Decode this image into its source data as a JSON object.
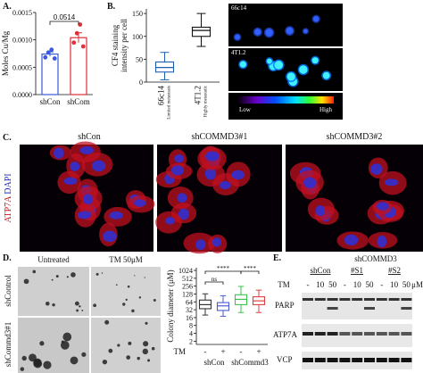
{
  "figure": {
    "panel_labels": [
      "A.",
      "B.",
      "C.",
      "D.",
      "E."
    ],
    "b_images": {
      "top": "66c14",
      "bottom": "4T1.2",
      "low": "Low",
      "high": "High"
    },
    "c": {
      "columns": [
        "shCon",
        "shCOMMD3#1",
        "shCOMMD3#2"
      ],
      "y_label_parts": [
        "ATP7A",
        "DAPI"
      ]
    },
    "d_images": {
      "columns": [
        "Untreated",
        "TM 50μM"
      ],
      "rows": [
        "shControl",
        "shCommd3#1"
      ]
    },
    "e": {
      "group": "shCOMMD3",
      "lanes_groups": [
        "shCon",
        "#S1",
        "#S2"
      ],
      "treatment": "TM",
      "doses": [
        "-",
        "10",
        "50",
        "-",
        "10",
        "50",
        "-",
        "10",
        "50"
      ],
      "unit": "μM",
      "proteins": [
        "PARP",
        "ATP7A",
        "VCP"
      ]
    }
  },
  "chart_data": [
    {
      "type": "bar",
      "y_label": "Moles Cu/Mg",
      "categories": [
        "shCon",
        "shCom"
      ],
      "values": [
        0.00074,
        0.00104
      ],
      "errors": [
        4e-05,
        9e-05
      ],
      "points": [
        [
          0.00068,
          0.00077,
          0.00082,
          0.00066
        ],
        [
          0.00095,
          0.00112,
          0.00128,
          0.00088
        ]
      ],
      "colors": [
        "#3a5bd9",
        "#e0303a"
      ],
      "ylim": [
        0,
        0.0015
      ],
      "yticks": [
        {
          "value": 0,
          "label": "0.0000"
        },
        {
          "value": 0.0005,
          "label": "0.0005"
        },
        {
          "value": 0.001,
          "label": "0.0010"
        },
        {
          "value": 0.0015,
          "label": "0.0015"
        }
      ],
      "annotation": "0.0514"
    },
    {
      "type": "box",
      "y_label": [
        "CF4 staining",
        "intensity per cell"
      ],
      "categories": [
        "66c14",
        "4T1.2"
      ],
      "category_notes": [
        "Limited metastasis",
        "Highly metastatic"
      ],
      "boxes": [
        {
          "min": 5,
          "q1": 22,
          "median": 32,
          "q3": 44,
          "max": 65
        },
        {
          "min": 78,
          "q1": 100,
          "median": 113,
          "q3": 120,
          "max": 150
        }
      ],
      "colors": [
        "#1f5fb0",
        "#111111"
      ],
      "ylim": [
        0,
        160
      ],
      "yticks": [
        0,
        50,
        100,
        150
      ]
    },
    {
      "type": "box",
      "y_label": "Colony diameter (μM)",
      "log_scale": true,
      "ylim": [
        1.5,
        1300
      ],
      "yticks": [
        2,
        4,
        8,
        16,
        32,
        64,
        128,
        256,
        512,
        1024
      ],
      "boxes": [
        {
          "min": 20,
          "q1": 35,
          "median": 50,
          "q3": 75,
          "max": 130
        },
        {
          "min": 18,
          "q1": 30,
          "median": 45,
          "q3": 60,
          "max": 110
        },
        {
          "min": 25,
          "q1": 50,
          "median": 80,
          "q3": 120,
          "max": 250
        },
        {
          "min": 25,
          "q1": 50,
          "median": 70,
          "q3": 100,
          "max": 180
        }
      ],
      "colors": [
        "#333333",
        "#4a5bd0",
        "#3cc050",
        "#e04040"
      ],
      "treatment_label": "TM",
      "treatments": [
        "-",
        "+",
        "-",
        "+"
      ],
      "groups": [
        "shCon",
        "shCommd3"
      ],
      "annotations": [
        "ns",
        "****",
        "****"
      ]
    }
  ]
}
